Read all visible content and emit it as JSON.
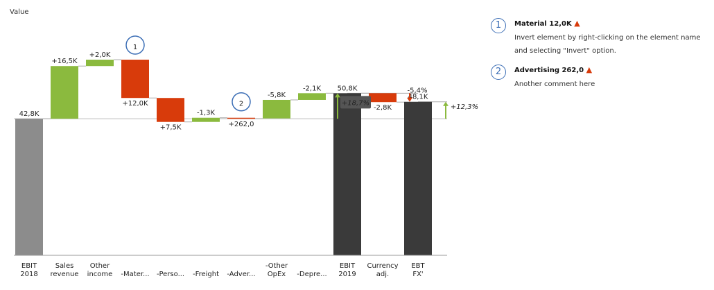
{
  "chart_data": {
    "type": "waterfall",
    "ylabel": "Value",
    "units": "K",
    "bars": [
      {
        "category": [
          "EBIT",
          "2018"
        ],
        "from": 0,
        "to": 42.8,
        "kind": "total-light",
        "label": "42,8K",
        "label_pos": "above"
      },
      {
        "category": [
          "Sales",
          "revenue"
        ],
        "from": 42.8,
        "to": 59.3,
        "kind": "positive",
        "label": "+16,5K",
        "label_pos": "above"
      },
      {
        "category": [
          "Other",
          "income"
        ],
        "from": 59.3,
        "to": 61.3,
        "kind": "positive",
        "label": "+2,0K",
        "label_pos": "above"
      },
      {
        "category": [
          "",
          "-Mater..."
        ],
        "from": 61.3,
        "to": 49.3,
        "kind": "negative",
        "label": "+12,0K",
        "label_pos": "below"
      },
      {
        "category": [
          "",
          "-Perso..."
        ],
        "from": 49.3,
        "to": 41.8,
        "kind": "negative",
        "label": "+7,5K",
        "label_pos": "below"
      },
      {
        "category": [
          "",
          "-Freight"
        ],
        "from": 41.8,
        "to": 43.1,
        "kind": "positive",
        "label": "-1,3K",
        "label_pos": "above"
      },
      {
        "category": [
          "",
          "-Adver..."
        ],
        "from": 43.1,
        "to": 42.84,
        "kind": "negative",
        "label": "+262,0",
        "label_pos": "below"
      },
      {
        "category": [
          "-Other",
          "OpEx"
        ],
        "from": 42.9,
        "to": 48.7,
        "kind": "positive",
        "label": "-5,8K",
        "label_pos": "above"
      },
      {
        "category": [
          "",
          "-Depre..."
        ],
        "from": 48.7,
        "to": 50.8,
        "kind": "positive",
        "label": "-2,1K",
        "label_pos": "above"
      },
      {
        "category": [
          "EBIT",
          "2019"
        ],
        "from": 0,
        "to": 50.8,
        "kind": "total",
        "label": "50,8K",
        "label_pos": "above"
      },
      {
        "category": [
          "Currency",
          "adj."
        ],
        "from": 50.8,
        "to": 48.0,
        "kind": "negative",
        "label": "-2,8K",
        "label_pos": "below"
      },
      {
        "category": [
          "EBT",
          "FX'"
        ],
        "from": 0,
        "to": 48.1,
        "kind": "total",
        "label": "48,1K",
        "label_pos": "above"
      }
    ],
    "deltas": [
      {
        "label": "+18,7%",
        "from": 42.8,
        "to": 50.8,
        "color": "#8bba3e"
      },
      {
        "label": "-5,4%",
        "from": 50.8,
        "to": 48.1,
        "color": "#d83b0b"
      },
      {
        "label": "+12,3%",
        "from": 42.8,
        "to": 48.1,
        "color": "#8bba3e"
      }
    ],
    "markers": [
      {
        "number": "1",
        "bar": 3
      },
      {
        "number": "2",
        "bar": 6
      }
    ],
    "colors": {
      "positive": "#8bba3e",
      "negative": "#d83b0b",
      "total": "#3a3a3a",
      "total-light": "#8c8c8c",
      "marker": "#3d6fb6"
    }
  },
  "comments": [
    {
      "number": "1",
      "title": "Material 12,0K",
      "body": "Invert element by right-clicking on the element name and selecting \"Invert\" option."
    },
    {
      "number": "2",
      "title": "Advertising 262,0",
      "body": "Another comment here"
    }
  ],
  "triangle_icon": "▲"
}
